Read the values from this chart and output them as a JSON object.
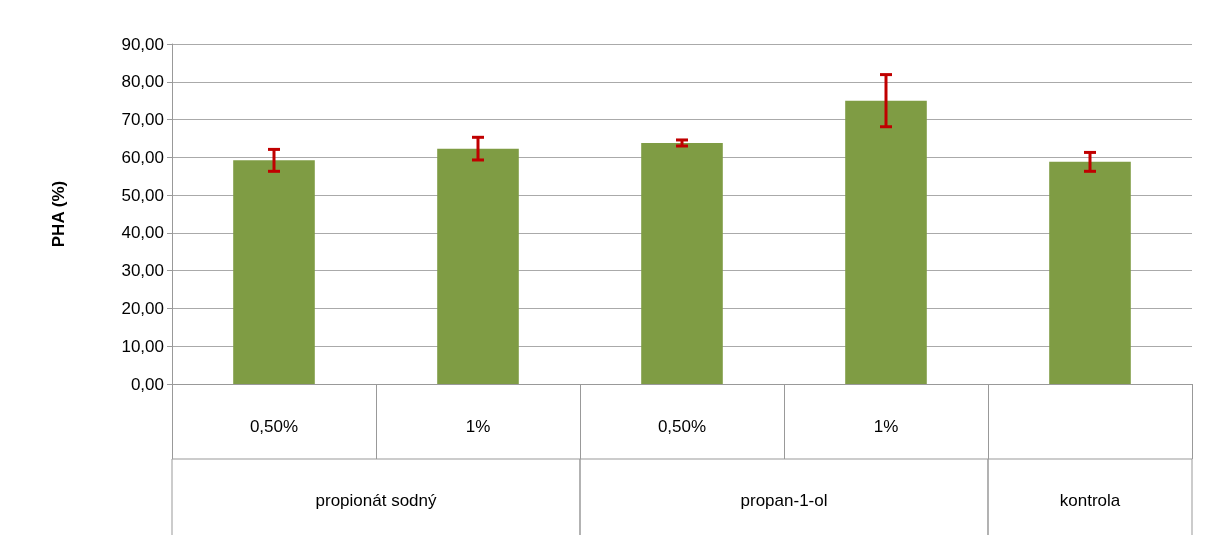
{
  "chart_data": {
    "type": "bar",
    "ylabel": "PHA (%)",
    "categories": [
      "0,50%",
      "1%",
      "0,50%",
      "1%",
      null
    ],
    "values": [
      59.2,
      62.3,
      63.8,
      75.0,
      58.8
    ],
    "errors": [
      2.9,
      3.0,
      0.8,
      6.9,
      2.5
    ],
    "color": "#7f9c44",
    "ylim": [
      0,
      90
    ],
    "yticks": [
      {
        "value": 0,
        "label": "0,00"
      },
      {
        "value": 10,
        "label": "10,00"
      },
      {
        "value": 20,
        "label": "20,00"
      },
      {
        "value": 30,
        "label": "30,00"
      },
      {
        "value": 40,
        "label": "40,00"
      },
      {
        "value": 50,
        "label": "50,00"
      },
      {
        "value": 60,
        "label": "60,00"
      },
      {
        "value": 70,
        "label": "70,00"
      },
      {
        "value": 80,
        "label": "80,00"
      },
      {
        "value": 90,
        "label": "90,00"
      }
    ],
    "grid": "y",
    "annotations": [
      "propionát sodný",
      "propan-1-ol",
      "kontrola"
    ]
  }
}
